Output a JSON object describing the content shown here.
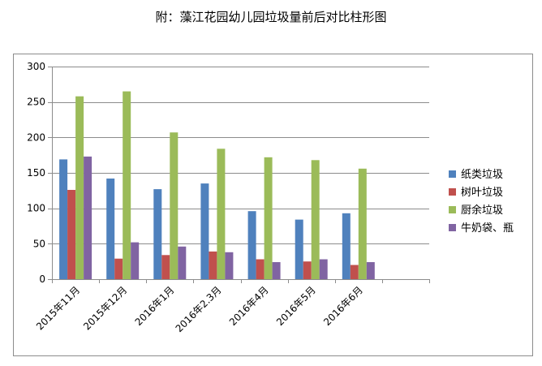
{
  "chart_data": {
    "type": "bar",
    "title": "附：藻江花园幼儿园垃圾量前后对比柱形图",
    "xlabel": "",
    "ylabel": "",
    "ylim": [
      0,
      300
    ],
    "yticks": [
      0,
      50,
      100,
      150,
      200,
      250,
      300
    ],
    "categories": [
      "2015年11月",
      "2015年12月",
      "2016年1月",
      "2016年2.3月",
      "2016年4月",
      "2016年5月",
      "2016年6月",
      ""
    ],
    "series": [
      {
        "name": "纸类垃圾",
        "color": "#4f81bd",
        "values": [
          169,
          142,
          127,
          135,
          96,
          84,
          93,
          null
        ]
      },
      {
        "name": "树叶垃圾",
        "color": "#c0504d",
        "values": [
          126,
          29,
          34,
          39,
          28,
          25,
          20,
          null
        ]
      },
      {
        "name": "厨余垃圾",
        "color": "#9bbb59",
        "values": [
          258,
          265,
          207,
          184,
          172,
          168,
          156,
          null
        ]
      },
      {
        "name": "牛奶袋、瓶",
        "color": "#8064a2",
        "values": [
          173,
          52,
          46,
          38,
          24,
          28,
          24,
          null
        ]
      }
    ],
    "grid": true,
    "legend_position": "right"
  }
}
